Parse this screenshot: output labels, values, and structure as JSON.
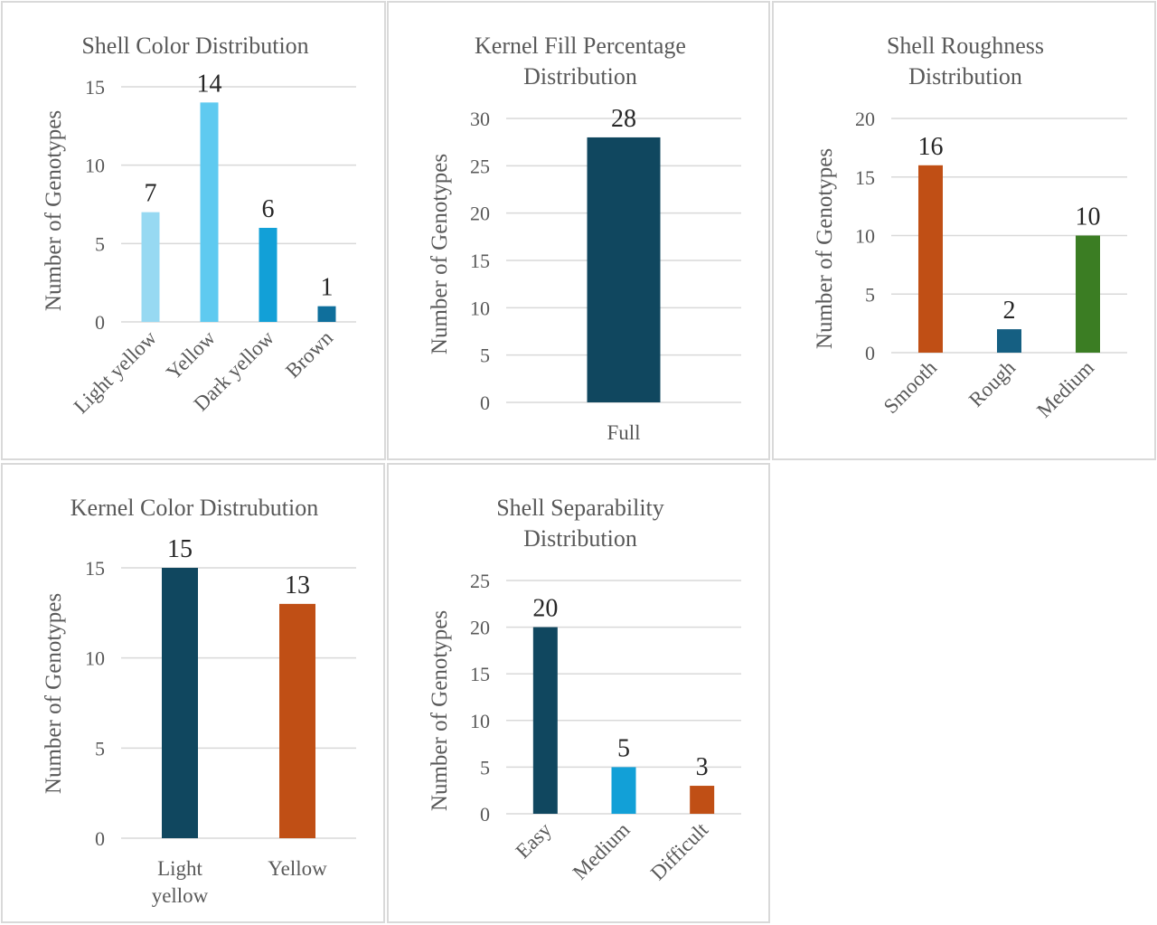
{
  "colors": {
    "gridline": "#d9d9d9",
    "text": "#595959",
    "label_text": "#262626",
    "panel_border": "#d9d9d9"
  },
  "chart_data": [
    {
      "type": "bar",
      "title": "Shell Color Distribution",
      "title_lines": [
        "Shell Color Distribution"
      ],
      "xlabel": "",
      "ylabel": "Number of Genotypes",
      "categories": [
        "Light yellow",
        "Yellow",
        "Dark yellow",
        "Brown"
      ],
      "values": [
        7,
        14,
        6,
        1
      ],
      "bar_colors": [
        "#97d9f2",
        "#5fcaf0",
        "#12a0d7",
        "#0f6f9c"
      ],
      "ylim": [
        0,
        15
      ],
      "yticks": [
        0,
        5,
        10,
        15
      ],
      "grid": true,
      "legend": "none",
      "rotated_labels": true,
      "data_labels": true
    },
    {
      "type": "bar",
      "title": "Kernel Fill Percentage Distribution",
      "title_lines": [
        "Kernel Fill Percentage",
        "Distribution"
      ],
      "xlabel": "",
      "ylabel": "Number of Genotypes",
      "categories": [
        "Full"
      ],
      "values": [
        28
      ],
      "bar_colors": [
        "#10475f"
      ],
      "ylim": [
        0,
        30
      ],
      "yticks": [
        0,
        5,
        10,
        15,
        20,
        25,
        30
      ],
      "grid": true,
      "legend": "none",
      "rotated_labels": false,
      "data_labels": true
    },
    {
      "type": "bar",
      "title": "Shell Roughness Distribution",
      "title_lines": [
        "Shell Roughness",
        "Distribution"
      ],
      "xlabel": "",
      "ylabel": "Number of Genotypes",
      "categories": [
        "Smooth",
        "Rough",
        "Medium"
      ],
      "values": [
        16,
        2,
        10
      ],
      "bar_colors": [
        "#c04f15",
        "#155f82",
        "#3b7d23"
      ],
      "ylim": [
        0,
        20
      ],
      "yticks": [
        0,
        5,
        10,
        15,
        20
      ],
      "grid": true,
      "legend": "none",
      "rotated_labels": true,
      "data_labels": true
    },
    {
      "type": "bar",
      "title": "Kernel Color Distrubution",
      "title_lines": [
        "Kernel Color Distrubution"
      ],
      "xlabel": "",
      "ylabel": "Number of Genotypes",
      "categories": [
        "Light yellow",
        "Yellow"
      ],
      "category_lines": [
        [
          "Light",
          "yellow"
        ],
        [
          "Yellow"
        ]
      ],
      "values": [
        15,
        13
      ],
      "bar_colors": [
        "#10475f",
        "#c04f15"
      ],
      "ylim": [
        0,
        15
      ],
      "yticks": [
        0,
        5,
        10,
        15
      ],
      "grid": true,
      "legend": "none",
      "rotated_labels": false,
      "data_labels": true
    },
    {
      "type": "bar",
      "title": "Shell Separability Distribution",
      "title_lines": [
        "Shell Separability",
        "Distribution"
      ],
      "xlabel": "",
      "ylabel": "Number of Genotypes",
      "categories": [
        "Easy",
        "Medium",
        "Difficult"
      ],
      "values": [
        20,
        5,
        3
      ],
      "bar_colors": [
        "#10475f",
        "#12a0d7",
        "#c04f15"
      ],
      "ylim": [
        0,
        25
      ],
      "yticks": [
        0,
        5,
        10,
        15,
        20,
        25
      ],
      "grid": true,
      "legend": "none",
      "rotated_labels": true,
      "data_labels": true
    }
  ]
}
